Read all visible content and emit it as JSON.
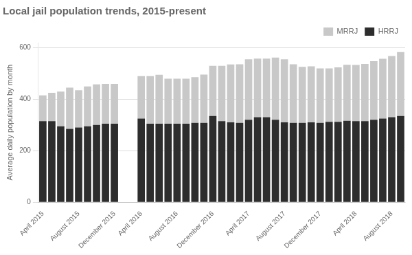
{
  "chart_data": {
    "type": "bar",
    "title": "Local jail population trends, 2015-present",
    "ylabel": "Average daily population by month",
    "categories": [
      "April 2015",
      null,
      null,
      null,
      "August 2015",
      null,
      null,
      null,
      "December 2015",
      null,
      null,
      "April 2016",
      null,
      null,
      null,
      "August 2016",
      null,
      null,
      null,
      "December 2016",
      null,
      null,
      null,
      "April 2017",
      null,
      null,
      null,
      "August 2017",
      null,
      null,
      null,
      "December 2017",
      null,
      null,
      null,
      "April 2018",
      null,
      null,
      null,
      "August 2018",
      null
    ],
    "series": [
      {
        "name": "HRRJ",
        "color": "#2d2d2d",
        "values": [
          315,
          315,
          295,
          285,
          290,
          295,
          300,
          305,
          305,
          null,
          null,
          325,
          305,
          305,
          305,
          305,
          305,
          308,
          308,
          335,
          315,
          310,
          308,
          320,
          330,
          330,
          320,
          310,
          308,
          308,
          310,
          308,
          312,
          312,
          316,
          315,
          315,
          320,
          325,
          330,
          335
        ]
      },
      {
        "name": "MRRJ",
        "color": "#c8c8c8",
        "values": [
          100,
          110,
          135,
          160,
          145,
          155,
          158,
          155,
          155,
          null,
          null,
          165,
          185,
          190,
          175,
          175,
          175,
          178,
          188,
          195,
          215,
          225,
          228,
          235,
          228,
          228,
          242,
          245,
          228,
          218,
          218,
          212,
          208,
          212,
          218,
          218,
          222,
          228,
          232,
          238,
          248
        ]
      }
    ],
    "stacked": true,
    "ylim": [
      0,
      620
    ],
    "yticks": [
      0,
      200,
      400,
      600
    ],
    "grid": true,
    "legend": "upper right"
  }
}
